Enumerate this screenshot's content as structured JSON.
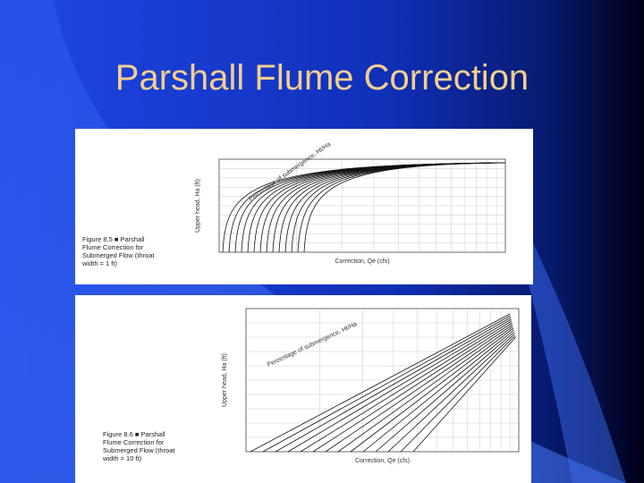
{
  "title": "Parshall Flume Correction",
  "figures": [
    {
      "caption": [
        "Figure 8.5 ■ Parshall",
        "Flume Correction for",
        "Submerged Flow (throat",
        "width = 1 ft)"
      ],
      "y_axis_label": "Upper head, Ha (ft)",
      "x_axis_label": "Correction, Qe (cfs)",
      "curve_label": "Percentage of submergence, Ht/Ha"
    },
    {
      "caption": [
        "Figure 8.6 ■ Parshall",
        "Flume Correction for",
        "Submerged Flow (throat",
        "width = 10 ft)"
      ],
      "y_axis_label": "Upper head, Ha (ft)",
      "x_axis_label": "Correction, Qe (cfs)",
      "curve_label": "Percentage of submergence, Ht/Ha"
    }
  ]
}
